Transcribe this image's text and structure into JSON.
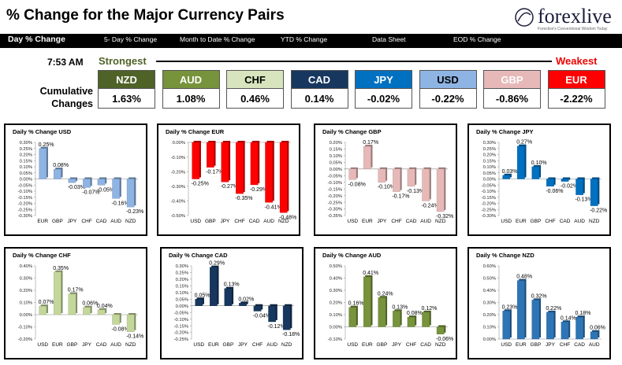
{
  "header": {
    "title": "% Change for the Major Currency Pairs",
    "logo_text": "forexlive",
    "logo_tagline": "Forexlive's Conventional Wisdom Today"
  },
  "tabs": [
    {
      "label": "Day % Change"
    },
    {
      "label": "5- Day % Change"
    },
    {
      "label": "Month to Date % Change"
    },
    {
      "label": "YTD % Change"
    },
    {
      "label": "Data Sheet"
    },
    {
      "label": "EOD % Change"
    }
  ],
  "ranking": {
    "time": "7:53 AM",
    "strongest_label": "Strongest",
    "weakest_label": "Weakest",
    "row_label": "Cumulative Changes",
    "currencies": [
      {
        "code": "NZD",
        "value": "1.63%",
        "color": "#4f6228",
        "text_color": "#ffffff"
      },
      {
        "code": "AUD",
        "value": "1.08%",
        "color": "#77933c",
        "text_color": "#ffffff"
      },
      {
        "code": "CHF",
        "value": "0.46%",
        "color": "#d7e4bd",
        "text_color": "#000000"
      },
      {
        "code": "CAD",
        "value": "0.14%",
        "color": "#17375e",
        "text_color": "#ffffff"
      },
      {
        "code": "JPY",
        "value": "-0.02%",
        "color": "#0070c0",
        "text_color": "#ffffff"
      },
      {
        "code": "USD",
        "value": "-0.22%",
        "color": "#8eb4e3",
        "text_color": "#000000"
      },
      {
        "code": "GBP",
        "value": "-0.86%",
        "color": "#e6b9b8",
        "text_color": "#ffffff"
      },
      {
        "code": "EUR",
        "value": "-2.22%",
        "color": "#ff0000",
        "text_color": "#ffffff"
      }
    ]
  },
  "chart_data": [
    {
      "type": "bar",
      "title": "Daily % Change USD",
      "categories": [
        "EUR",
        "GBP",
        "JPY",
        "CHF",
        "CAD",
        "AUD",
        "NZD"
      ],
      "values": [
        0.25,
        0.08,
        -0.03,
        -0.07,
        -0.05,
        -0.16,
        -0.23
      ],
      "labels": [
        "0.25%",
        "0.08%",
        "-0.03%",
        "-0.07%",
        "-0.05%",
        "-0.16%",
        "-0.23%"
      ],
      "ylim": [
        -0.3,
        0.3
      ],
      "ticks": [
        "0.30%",
        "0.25%",
        "0.20%",
        "0.15%",
        "0.10%",
        "0.05%",
        "0.00%",
        "-0.05%",
        "-0.10%",
        "-0.15%",
        "-0.20%",
        "-0.25%",
        "-0.30%"
      ],
      "color": "#8eb4e3"
    },
    {
      "type": "bar",
      "title": "Daily % Change EUR",
      "categories": [
        "USD",
        "GBP",
        "JPY",
        "CHF",
        "CAD",
        "AUD",
        "NZD"
      ],
      "values": [
        -0.25,
        -0.17,
        -0.27,
        -0.35,
        -0.29,
        -0.41,
        -0.48
      ],
      "labels": [
        "-0.25%",
        "-0.17%",
        "-0.27%",
        "-0.35%",
        "-0.29%",
        "-0.41%",
        "-0.48%"
      ],
      "ylim": [
        -0.5,
        0.0
      ],
      "ticks": [
        "0.00%",
        "-0.10%",
        "-0.20%",
        "-0.30%",
        "-0.40%",
        "-0.50%"
      ],
      "color": "#ff0000"
    },
    {
      "type": "bar",
      "title": "Daily % Change GBP",
      "categories": [
        "USD",
        "EUR",
        "JPY",
        "CHF",
        "CAD",
        "AUD",
        "NZD"
      ],
      "values": [
        -0.08,
        0.17,
        -0.1,
        -0.17,
        -0.13,
        -0.24,
        -0.32
      ],
      "labels": [
        "-0.08%",
        "0.17%",
        "-0.10%",
        "-0.17%",
        "-0.13%",
        "-0.24%",
        "-0.32%"
      ],
      "ylim": [
        -0.35,
        0.2
      ],
      "ticks": [
        "0.20%",
        "0.15%",
        "0.10%",
        "0.05%",
        "0.00%",
        "-0.05%",
        "-0.10%",
        "-0.15%",
        "-0.20%",
        "-0.25%",
        "-0.30%",
        "-0.35%"
      ],
      "color": "#e6b9b8"
    },
    {
      "type": "bar",
      "title": "Daily % Change JPY",
      "categories": [
        "USD",
        "EUR",
        "GBP",
        "CHF",
        "CAD",
        "AUD",
        "NZD"
      ],
      "values": [
        0.03,
        0.27,
        0.1,
        -0.06,
        -0.02,
        -0.13,
        -0.22
      ],
      "labels": [
        "0.03%",
        "0.27%",
        "0.10%",
        "-0.06%",
        "-0.02%",
        "-0.13%",
        "-0.22%"
      ],
      "ylim": [
        -0.3,
        0.3
      ],
      "ticks": [
        "0.30%",
        "0.25%",
        "0.20%",
        "0.15%",
        "0.10%",
        "0.05%",
        "0.00%",
        "-0.05%",
        "-0.10%",
        "-0.15%",
        "-0.20%",
        "-0.25%",
        "-0.30%"
      ],
      "color": "#0070c0"
    },
    {
      "type": "bar",
      "title": "Daily % Change CHF",
      "categories": [
        "USD",
        "EUR",
        "GBP",
        "JPY",
        "CAD",
        "AUD",
        "NZD"
      ],
      "values": [
        0.07,
        0.35,
        0.17,
        0.06,
        0.04,
        -0.08,
        -0.14
      ],
      "labels": [
        "0.07%",
        "0.35%",
        "0.17%",
        "0.06%",
        "0.04%",
        "-0.08%",
        "-0.14%"
      ],
      "ylim": [
        -0.2,
        0.4
      ],
      "ticks": [
        "0.40%",
        "0.30%",
        "0.20%",
        "0.10%",
        "0.00%",
        "-0.10%",
        "-0.20%"
      ],
      "color": "#c4d79b"
    },
    {
      "type": "bar",
      "title": "Daily % Change CAD",
      "categories": [
        "USD",
        "EUR",
        "GBP",
        "JPY",
        "CHF",
        "AUD",
        "NZD"
      ],
      "values": [
        0.05,
        0.29,
        0.13,
        0.02,
        -0.04,
        -0.12,
        -0.18
      ],
      "labels": [
        "0.05%",
        "0.29%",
        "0.13%",
        "0.02%",
        "-0.04%",
        "-0.12%",
        "-0.18%"
      ],
      "ylim": [
        -0.25,
        0.3
      ],
      "ticks": [
        "0.30%",
        "0.25%",
        "0.20%",
        "0.15%",
        "0.10%",
        "0.05%",
        "0.00%",
        "-0.05%",
        "-0.10%",
        "-0.15%",
        "-0.20%",
        "-0.25%"
      ],
      "color": "#17375e"
    },
    {
      "type": "bar",
      "title": "Daily % Change AUD",
      "categories": [
        "USD",
        "EUR",
        "GBP",
        "JPY",
        "CHF",
        "CAD",
        "NZD"
      ],
      "values": [
        0.16,
        0.41,
        0.24,
        0.13,
        0.08,
        0.12,
        -0.06
      ],
      "labels": [
        "0.16%",
        "0.41%",
        "0.24%",
        "0.13%",
        "0.08%",
        "0.12%",
        "-0.06%"
      ],
      "ylim": [
        -0.1,
        0.5
      ],
      "ticks": [
        "0.50%",
        "0.40%",
        "0.30%",
        "0.20%",
        "0.10%",
        "0.00%",
        "-0.10%"
      ],
      "color": "#77933c"
    },
    {
      "type": "bar",
      "title": "Daily % Change NZD",
      "categories": [
        "USD",
        "EUR",
        "GBP",
        "JPY",
        "CHF",
        "CAD",
        "AUD"
      ],
      "values": [
        0.23,
        0.48,
        0.32,
        0.22,
        0.14,
        0.18,
        0.06
      ],
      "labels": [
        "0.23%",
        "0.48%",
        "0.32%",
        "0.22%",
        "0.14%",
        "0.18%",
        "0.06%"
      ],
      "ylim": [
        0.0,
        0.6
      ],
      "ticks": [
        "0.60%",
        "0.50%",
        "0.40%",
        "0.30%",
        "0.20%",
        "0.10%",
        "0.00%"
      ],
      "color": "#2e75b6"
    }
  ]
}
